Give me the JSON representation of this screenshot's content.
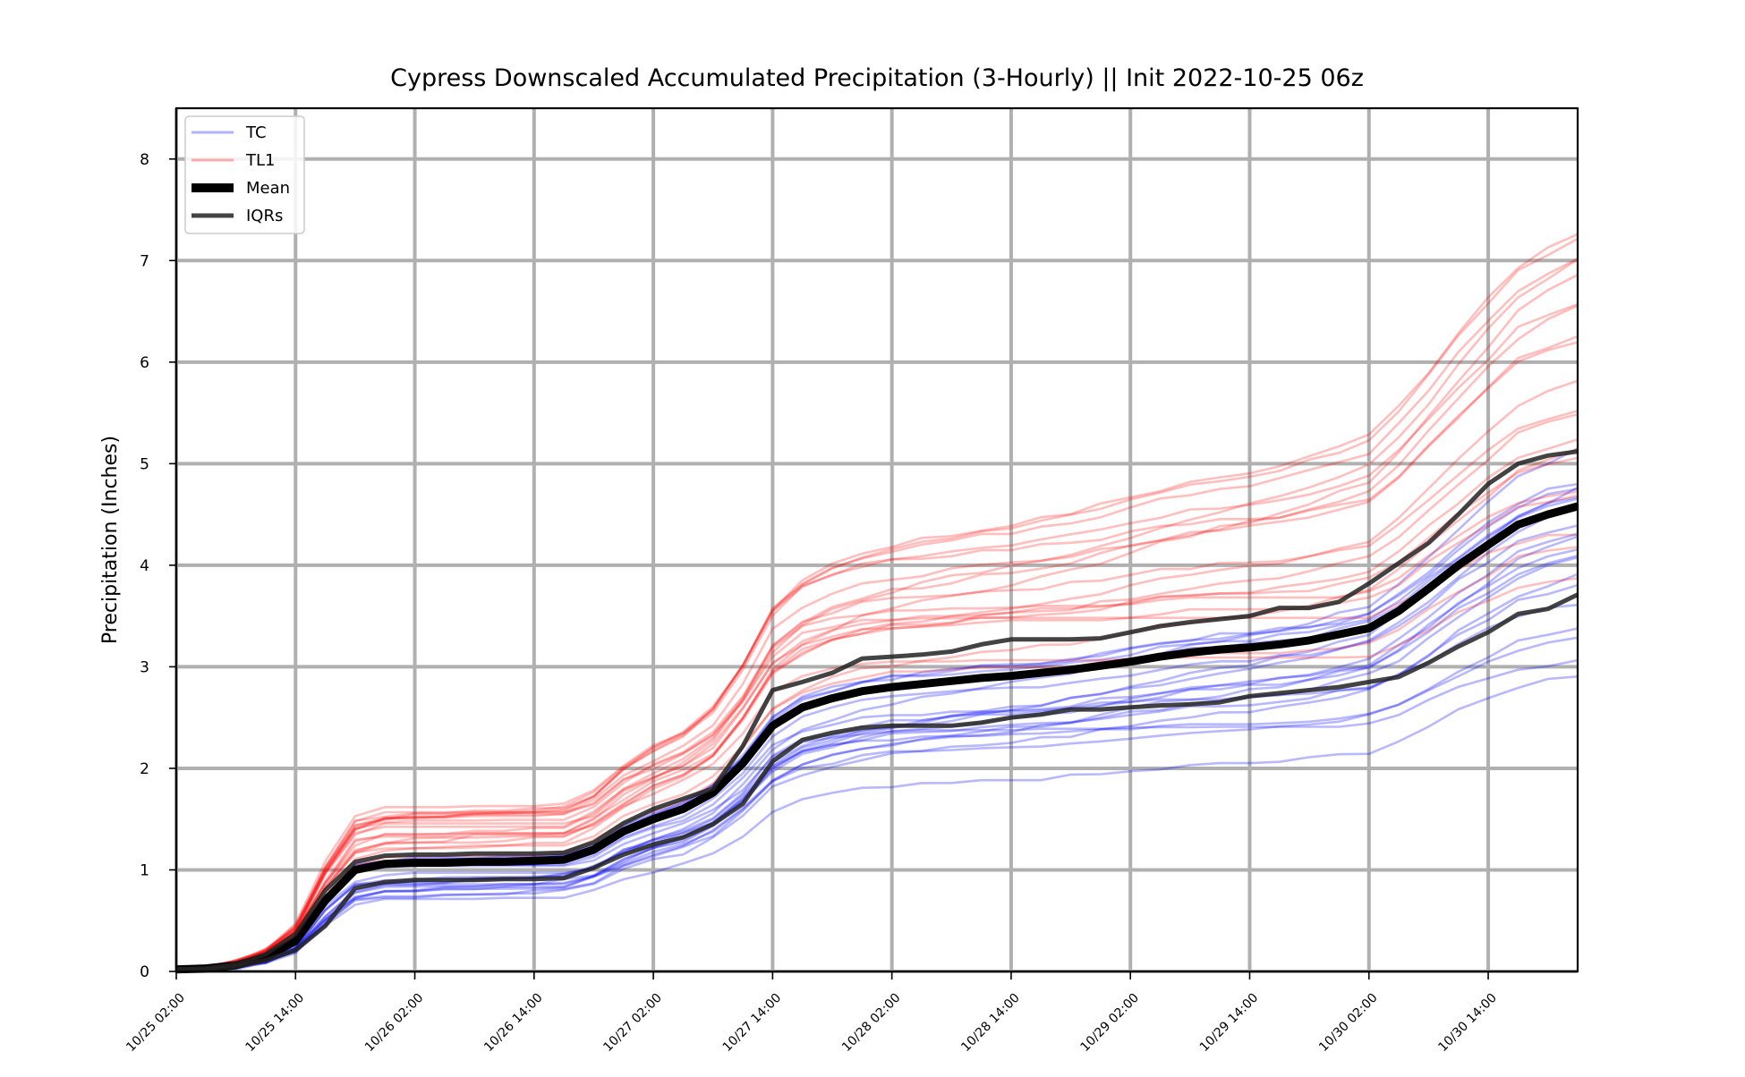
{
  "chart_data": {
    "type": "line",
    "title": "Cypress Downscaled Accumulated Precipitation (3-Hourly) || Init 2022-10-25 06z",
    "xlabel": "",
    "ylabel": "Precipitation (Inches)",
    "x_tick_labels": [
      "10/25 02:00",
      "10/25 14:00",
      "10/26 02:00",
      "10/26 14:00",
      "10/27 02:00",
      "10/27 14:00",
      "10/28 02:00",
      "10/28 14:00",
      "10/29 02:00",
      "10/29 14:00",
      "10/30 02:00",
      "10/30 14:00"
    ],
    "y_ticks": [
      0,
      1,
      2,
      3,
      4,
      5,
      6,
      7,
      8
    ],
    "ylim": [
      0,
      8.5
    ],
    "x_range_hours": [
      0,
      141
    ],
    "x_tick_hours": [
      0,
      12,
      24,
      36,
      48,
      60,
      72,
      84,
      96,
      108,
      120,
      132
    ],
    "grid": true,
    "legend_position": "top-left",
    "legend": [
      {
        "label": "TC",
        "color": "#0000ff",
        "style": "thin-translucent"
      },
      {
        "label": "TL1",
        "color": "#ff0000",
        "style": "thin-translucent"
      },
      {
        "label": "Mean",
        "color": "#000000",
        "style": "thick"
      },
      {
        "label": "IQRs",
        "color": "#222222",
        "style": "medium"
      }
    ],
    "series_hours": [
      0,
      3,
      6,
      9,
      12,
      15,
      18,
      21,
      24,
      27,
      30,
      33,
      36,
      39,
      42,
      45,
      48,
      51,
      54,
      57,
      60,
      63,
      66,
      69,
      72,
      75,
      78,
      81,
      84,
      87,
      90,
      93,
      96,
      99,
      102,
      105,
      108,
      111,
      114,
      117,
      120,
      123,
      126,
      129,
      132,
      135,
      138,
      141
    ],
    "series": [
      {
        "name": "Mean",
        "color": "#000000",
        "values": [
          0.02,
          0.03,
          0.06,
          0.14,
          0.3,
          0.7,
          1.0,
          1.06,
          1.07,
          1.07,
          1.08,
          1.08,
          1.09,
          1.1,
          1.2,
          1.38,
          1.5,
          1.6,
          1.76,
          2.05,
          2.42,
          2.6,
          2.69,
          2.76,
          2.8,
          2.83,
          2.86,
          2.89,
          2.91,
          2.94,
          2.97,
          3.01,
          3.05,
          3.1,
          3.14,
          3.17,
          3.19,
          3.22,
          3.26,
          3.32,
          3.38,
          3.55,
          3.77,
          4.0,
          4.2,
          4.4,
          4.5,
          4.58
        ]
      },
      {
        "name": "IQRs",
        "color": "#222222",
        "values": [
          0.02,
          0.03,
          0.07,
          0.17,
          0.37,
          0.8,
          1.08,
          1.14,
          1.15,
          1.15,
          1.16,
          1.16,
          1.16,
          1.17,
          1.27,
          1.46,
          1.6,
          1.7,
          1.8,
          2.22,
          2.77,
          2.85,
          2.94,
          3.08,
          3.1,
          3.12,
          3.15,
          3.22,
          3.27,
          3.27,
          3.27,
          3.28,
          3.34,
          3.4,
          3.44,
          3.47,
          3.5,
          3.58,
          3.58,
          3.64,
          3.82,
          4.02,
          4.22,
          4.5,
          4.8,
          5.0,
          5.08,
          5.12
        ]
      },
      {
        "name": "IQRs",
        "color": "#222222",
        "values": [
          0.02,
          0.02,
          0.05,
          0.11,
          0.21,
          0.45,
          0.82,
          0.88,
          0.9,
          0.9,
          0.9,
          0.91,
          0.91,
          0.92,
          1.02,
          1.15,
          1.25,
          1.32,
          1.45,
          1.65,
          2.07,
          2.28,
          2.35,
          2.4,
          2.42,
          2.42,
          2.42,
          2.45,
          2.5,
          2.53,
          2.58,
          2.58,
          2.6,
          2.62,
          2.63,
          2.65,
          2.71,
          2.74,
          2.77,
          2.8,
          2.85,
          2.9,
          3.04,
          3.2,
          3.34,
          3.52,
          3.57,
          3.71
        ]
      }
    ]
  }
}
